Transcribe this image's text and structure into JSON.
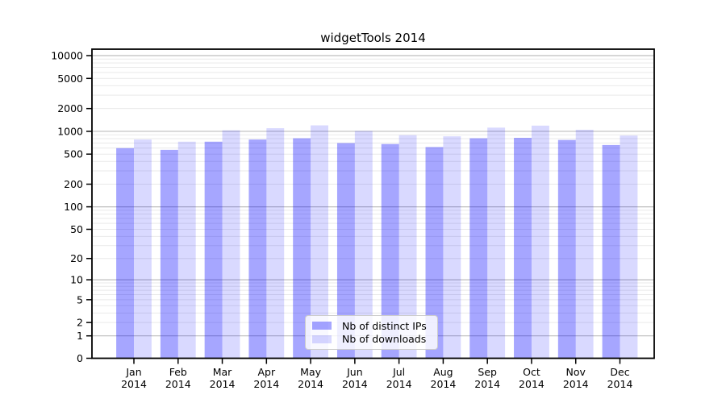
{
  "title": "widgetTools 2014",
  "legend": {
    "items": [
      {
        "label": "Nb of distinct IPs",
        "color": "rgba(0,0,255,0.35)"
      },
      {
        "label": "Nb of downloads",
        "color": "rgba(0,0,255,0.15)"
      }
    ]
  },
  "chart_data": {
    "type": "bar",
    "title": "widgetTools 2014",
    "categories": [
      "Jan 2014",
      "Feb 2014",
      "Mar 2014",
      "Apr 2014",
      "May 2014",
      "Jun 2014",
      "Jul 2014",
      "Aug 2014",
      "Sep 2014",
      "Oct 2014",
      "Nov 2014",
      "Dec 2014"
    ],
    "x_tick_line1": [
      "Jan",
      "Feb",
      "Mar",
      "Apr",
      "May",
      "Jun",
      "Jul",
      "Aug",
      "Sep",
      "Oct",
      "Nov",
      "Dec"
    ],
    "x_tick_line2": [
      "2014",
      "2014",
      "2014",
      "2014",
      "2014",
      "2014",
      "2014",
      "2014",
      "2014",
      "2014",
      "2014",
      "2014"
    ],
    "series": [
      {
        "name": "Nb of distinct IPs",
        "color": "rgba(0,0,255,0.35)",
        "values": [
          600,
          570,
          730,
          780,
          810,
          700,
          680,
          620,
          810,
          820,
          770,
          660
        ]
      },
      {
        "name": "Nb of downloads",
        "color": "rgba(0,0,255,0.15)",
        "values": [
          780,
          730,
          1030,
          1100,
          1200,
          1010,
          890,
          860,
          1120,
          1190,
          1050,
          880
        ]
      }
    ],
    "xlabel": "",
    "ylabel": "",
    "y_scale": "log10(value+1)",
    "y_ticks": [
      10000,
      5000,
      2000,
      1000,
      500,
      200,
      100,
      50,
      20,
      10,
      5,
      2,
      1,
      0
    ],
    "ylim": [
      0,
      11600
    ],
    "grid": "horizontal major + log-minor gridlines",
    "legend_position": "lower center inside plot",
    "colors": {
      "grid_major": "#bdbdbd",
      "grid_minor": "#e9e9e9",
      "axis": "#000000",
      "background": "#ffffff"
    }
  }
}
